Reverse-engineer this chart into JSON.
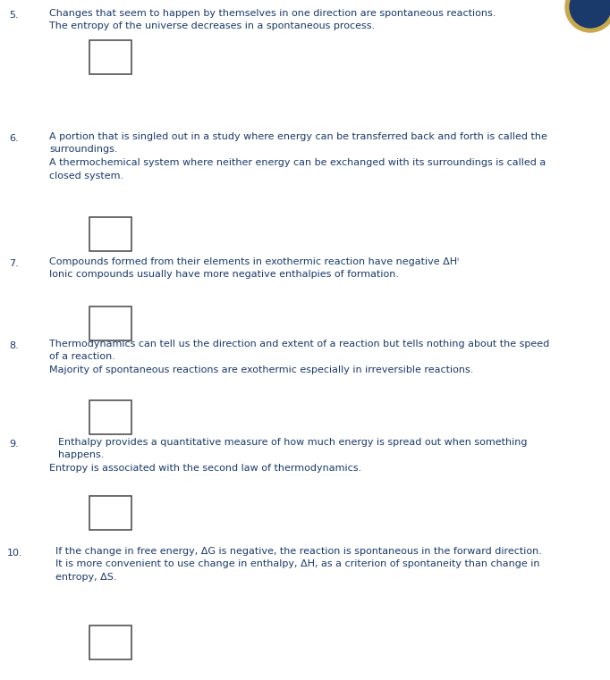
{
  "bg_color": "#ffffff",
  "text_color": "#1a3a6b",
  "font_size": 8.0,
  "items": [
    {
      "number": "5.",
      "text_lines": [
        [
          "Changes that seem to happen by themselves in one direction are spontaneous reactions."
        ],
        [
          "The entropy of the universe decreases in a spontaneous process."
        ]
      ],
      "indent_first": false
    },
    {
      "number": "6.",
      "text_lines": [
        [
          "A portion that is singled out in a study where energy can be transferred back and forth is called the"
        ],
        [
          "surroundings."
        ],
        [
          "A thermochemical system where neither energy can be exchanged with its surroundings is called a"
        ],
        [
          "closed system."
        ]
      ],
      "indent_first": false
    },
    {
      "number": "7.",
      "text_lines": [
        [
          "Compounds formed from their elements in exothermic reaction have negative ΔHⁱ"
        ],
        [
          "Ionic compounds usually have more negative enthalpies of formation."
        ]
      ],
      "indent_first": false
    },
    {
      "number": "8.",
      "text_lines": [
        [
          "Thermodynamics can tell us the direction and extent of a reaction but tells nothing about the speed"
        ],
        [
          "of a reaction."
        ],
        [
          "Majority of spontaneous reactions are exothermic especially in irreversible reactions."
        ]
      ],
      "indent_first": false
    },
    {
      "number": "9.",
      "text_lines": [
        [
          "Enthalpy provides a quantitative measure of how much energy is spread out when something"
        ],
        [
          "happens."
        ],
        [
          "Entropy is associated with the second law of thermodynamics."
        ]
      ],
      "indent_first": true
    },
    {
      "number": "10.",
      "text_lines": [
        [
          "If the change in free energy, ΔG is negative, the reaction is spontaneous in the forward direction."
        ],
        [
          "It is more convenient to use change in enthalpy, ΔH, as a criterion of spontaneity than change in"
        ],
        [
          "entropy, ΔS."
        ]
      ],
      "indent_first": false
    }
  ],
  "logo_visible": true
}
